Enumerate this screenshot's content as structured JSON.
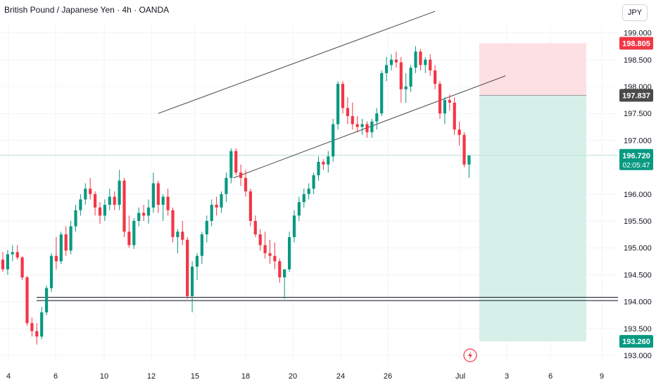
{
  "header": {
    "title": "British Pound / Japanese Yen · 4h · OANDA",
    "currency_button": "JPY"
  },
  "colors": {
    "up": "#089981",
    "down": "#f23645",
    "stop_zone": "#fde0e3",
    "target_zone": "#d7efe9",
    "channel": "#4a4a4a",
    "support": "#131722",
    "last_price": "#089981"
  },
  "event_icon": "lightning-bolt-icon",
  "chart_data": {
    "type": "candlestick",
    "title": "British Pound / Japanese Yen · 4h · OANDA",
    "ylim": [
      192.9,
      199.35
    ],
    "y_ticks": [
      "199.000",
      "198.500",
      "198.000",
      "197.500",
      "197.000",
      "196.000",
      "195.500",
      "195.000",
      "194.500",
      "194.000",
      "193.500",
      "193.000"
    ],
    "x_ticks": [
      "4",
      "6",
      "10",
      "12",
      "15",
      "18",
      "20",
      "24",
      "26",
      "Jul",
      "3",
      "6",
      "9"
    ],
    "grid": true,
    "price_tags": [
      {
        "label": "198.805",
        "value": 198.805,
        "color": "#f23645"
      },
      {
        "label": "197.837",
        "value": 197.837,
        "color": "#4a4a4a"
      },
      {
        "label": "196.720",
        "sub": "02:05:47",
        "value": 196.72,
        "color": "#089981"
      },
      {
        "label": "193.260",
        "value": 193.26,
        "color": "#089981"
      }
    ],
    "last_price": 196.72,
    "support_levels": [
      194.08,
      194.02
    ],
    "position": {
      "entry": 197.837,
      "stop": 198.805,
      "target": 193.26
    },
    "channel_upper": {
      "from": [
        32.0,
        197.5
      ],
      "to": [
        89.0,
        199.4
      ]
    },
    "channel_lower": {
      "from": [
        47.5,
        196.3
      ],
      "to": [
        103.5,
        198.2
      ]
    },
    "candles": [
      [
        194.78,
        194.92,
        194.55,
        194.6
      ],
      [
        194.6,
        194.96,
        194.5,
        194.88
      ],
      [
        194.88,
        195.05,
        194.75,
        194.92
      ],
      [
        194.92,
        195.05,
        194.78,
        194.82
      ],
      [
        194.82,
        194.85,
        194.4,
        194.45
      ],
      [
        194.45,
        194.48,
        193.55,
        193.6
      ],
      [
        193.6,
        193.7,
        193.35,
        193.45
      ],
      [
        193.45,
        193.6,
        193.2,
        193.35
      ],
      [
        193.35,
        193.9,
        193.3,
        193.8
      ],
      [
        193.8,
        194.3,
        193.75,
        194.25
      ],
      [
        194.25,
        194.9,
        194.18,
        194.85
      ],
      [
        194.85,
        195.2,
        194.6,
        194.75
      ],
      [
        194.75,
        195.3,
        194.7,
        195.25
      ],
      [
        195.25,
        195.4,
        194.85,
        194.95
      ],
      [
        194.95,
        195.5,
        194.88,
        195.4
      ],
      [
        195.4,
        195.8,
        195.3,
        195.7
      ],
      [
        195.7,
        196.0,
        195.6,
        195.9
      ],
      [
        195.9,
        196.2,
        195.8,
        196.1
      ],
      [
        196.1,
        196.3,
        195.9,
        196.0
      ],
      [
        196.0,
        196.05,
        195.6,
        195.75
      ],
      [
        195.75,
        195.85,
        195.45,
        195.6
      ],
      [
        195.6,
        195.9,
        195.5,
        195.8
      ],
      [
        195.8,
        196.1,
        195.7,
        195.95
      ],
      [
        195.95,
        196.05,
        195.7,
        195.8
      ],
      [
        195.8,
        196.45,
        195.7,
        196.25
      ],
      [
        196.25,
        196.3,
        195.2,
        195.3
      ],
      [
        195.3,
        195.6,
        195.0,
        195.05
      ],
      [
        195.05,
        195.55,
        194.98,
        195.5
      ],
      [
        195.5,
        195.75,
        195.4,
        195.65
      ],
      [
        195.65,
        195.8,
        195.5,
        195.6
      ],
      [
        195.6,
        195.9,
        195.45,
        195.75
      ],
      [
        195.75,
        196.4,
        195.65,
        196.2
      ],
      [
        196.2,
        196.25,
        195.65,
        195.8
      ],
      [
        195.8,
        196.0,
        195.5,
        195.95
      ],
      [
        195.95,
        196.1,
        195.6,
        195.7
      ],
      [
        195.7,
        195.75,
        195.1,
        195.2
      ],
      [
        195.2,
        195.35,
        194.9,
        195.3
      ],
      [
        195.3,
        195.5,
        195.05,
        195.15
      ],
      [
        195.15,
        195.2,
        194.05,
        194.1
      ],
      [
        194.1,
        194.75,
        193.8,
        194.65
      ],
      [
        194.65,
        194.9,
        194.4,
        194.85
      ],
      [
        194.85,
        195.3,
        194.7,
        195.25
      ],
      [
        195.25,
        195.6,
        195.1,
        195.5
      ],
      [
        195.5,
        195.9,
        195.4,
        195.8
      ],
      [
        195.8,
        195.95,
        195.6,
        195.75
      ],
      [
        195.75,
        196.05,
        195.65,
        196.0
      ],
      [
        196.0,
        196.4,
        195.85,
        196.3
      ],
      [
        196.3,
        196.85,
        196.2,
        196.8
      ],
      [
        196.8,
        196.85,
        196.35,
        196.4
      ],
      [
        196.4,
        196.55,
        196.15,
        196.3
      ],
      [
        196.3,
        196.45,
        195.95,
        196.05
      ],
      [
        196.05,
        196.1,
        195.4,
        195.5
      ],
      [
        195.5,
        195.6,
        195.2,
        195.25
      ],
      [
        195.25,
        195.35,
        194.95,
        195.05
      ],
      [
        195.05,
        195.3,
        194.8,
        194.9
      ],
      [
        194.9,
        195.15,
        194.7,
        194.85
      ],
      [
        194.85,
        195.1,
        194.6,
        194.75
      ],
      [
        194.75,
        194.8,
        194.35,
        194.45
      ],
      [
        194.45,
        194.6,
        194.05,
        194.6
      ],
      [
        194.6,
        195.3,
        194.55,
        195.2
      ],
      [
        195.2,
        195.7,
        195.1,
        195.6
      ],
      [
        195.6,
        195.95,
        195.5,
        195.85
      ],
      [
        195.85,
        196.1,
        195.75,
        196.0
      ],
      [
        196.0,
        196.2,
        195.9,
        196.1
      ],
      [
        196.1,
        196.4,
        196.0,
        196.35
      ],
      [
        196.35,
        196.7,
        196.25,
        196.6
      ],
      [
        196.6,
        196.65,
        196.45,
        196.55
      ],
      [
        196.55,
        196.8,
        196.4,
        196.7
      ],
      [
        196.7,
        197.4,
        196.6,
        197.3
      ],
      [
        197.3,
        198.1,
        197.2,
        198.05
      ],
      [
        198.05,
        198.1,
        197.5,
        197.6
      ],
      [
        197.6,
        197.8,
        197.3,
        197.45
      ],
      [
        197.45,
        197.7,
        197.2,
        197.3
      ],
      [
        197.3,
        197.45,
        197.15,
        197.25
      ],
      [
        197.25,
        197.4,
        197.1,
        197.3
      ],
      [
        197.3,
        197.35,
        197.05,
        197.15
      ],
      [
        197.15,
        197.4,
        197.05,
        197.35
      ],
      [
        197.35,
        197.6,
        197.2,
        197.5
      ],
      [
        197.5,
        198.3,
        197.45,
        198.25
      ],
      [
        198.25,
        198.55,
        198.1,
        198.4
      ],
      [
        198.4,
        198.6,
        198.3,
        198.5
      ],
      [
        198.5,
        198.65,
        198.35,
        198.45
      ],
      [
        198.45,
        198.55,
        197.7,
        197.95
      ],
      [
        197.95,
        198.25,
        197.7,
        198.0
      ],
      [
        198.0,
        198.4,
        197.9,
        198.35
      ],
      [
        198.35,
        198.75,
        198.25,
        198.65
      ],
      [
        198.65,
        198.7,
        198.3,
        198.4
      ],
      [
        198.4,
        198.55,
        198.25,
        198.5
      ],
      [
        198.5,
        198.6,
        198.2,
        198.3
      ],
      [
        198.3,
        198.4,
        197.95,
        198.05
      ],
      [
        198.05,
        198.1,
        197.4,
        197.5
      ],
      [
        197.5,
        197.8,
        197.3,
        197.75
      ],
      [
        197.75,
        197.85,
        197.55,
        197.7
      ],
      [
        197.7,
        197.8,
        197.1,
        197.2
      ],
      [
        197.2,
        197.35,
        196.9,
        197.1
      ],
      [
        197.1,
        197.15,
        196.5,
        196.55
      ],
      [
        196.55,
        196.7,
        196.3,
        196.72
      ]
    ]
  }
}
